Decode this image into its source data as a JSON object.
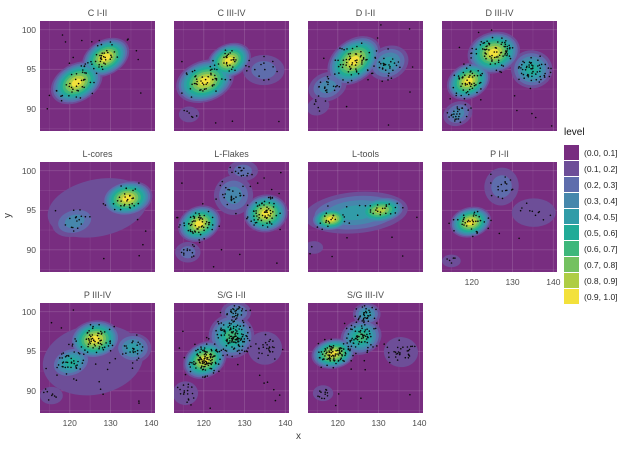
{
  "axes": {
    "x_label": "x",
    "y_label": "y",
    "x_tick_labels": [
      "120",
      "130",
      "140"
    ],
    "y_tick_labels": [
      "100",
      "95",
      "90"
    ]
  },
  "legend": {
    "title": "level",
    "entries": [
      {
        "label": "(0.0, 0.1]",
        "color": "#782d80"
      },
      {
        "label": "(0.1, 0.2]",
        "color": "#6d4e98"
      },
      {
        "label": "(0.2, 0.3]",
        "color": "#5e6dac"
      },
      {
        "label": "(0.3, 0.4]",
        "color": "#4687ac"
      },
      {
        "label": "(0.4, 0.5]",
        "color": "#319ca8"
      },
      {
        "label": "(0.5, 0.6]",
        "color": "#21ab97"
      },
      {
        "label": "(0.6, 0.7]",
        "color": "#3eb77b"
      },
      {
        "label": "(0.7, 0.8]",
        "color": "#74c160"
      },
      {
        "label": "(0.8, 0.9]",
        "color": "#aecd44"
      },
      {
        "label": "(0.9, 1.0]",
        "color": "#f3e13b"
      }
    ]
  },
  "style": {
    "panel_bg": "#782d80",
    "band_colors": [
      "#782d80",
      "#6d4e98",
      "#5e6dac",
      "#4687ac",
      "#319ca8",
      "#21ab97",
      "#3eb77b",
      "#74c160",
      "#aecd44",
      "#f3e13b"
    ],
    "grid_major": "rgba(255,255,255,0.15)",
    "grid_minor": "rgba(255,255,255,0.07)",
    "point_color": "#0a0a0a",
    "text_color": "#4d4d4d"
  },
  "chart_data": {
    "type": "scatter",
    "subtype": "faceted 2D kernel-density filled contours (10 level bins) with data points",
    "x_range": [
      112.7,
      140.9
    ],
    "y_range": [
      87.2,
      101.1
    ],
    "x_ticks": [
      120,
      130,
      140
    ],
    "y_ticks": [
      100,
      95,
      90
    ],
    "grid_x": [
      115,
      120,
      125,
      130,
      135,
      140
    ],
    "grid_y": [
      87.5,
      90,
      92.5,
      95,
      97.5,
      100
    ],
    "facets": [
      {
        "title": "C I-II",
        "row": 0,
        "col": 0,
        "seed": 1,
        "scatter_n": 12,
        "kernels": [
          {
            "x": 121.7,
            "y": 93.3,
            "rx": 6.8,
            "ry": 2.4,
            "rot": -30,
            "peak": 10,
            "n": 40
          },
          {
            "x": 128.8,
            "y": 96.5,
            "rx": 6.2,
            "ry": 2.2,
            "rot": -30,
            "peak": 10,
            "n": 35
          }
        ]
      },
      {
        "title": "C III-IV",
        "row": 0,
        "col": 1,
        "seed": 2,
        "scatter_n": 10,
        "kernels": [
          {
            "x": 120.3,
            "y": 93.5,
            "rx": 7.3,
            "ry": 2.6,
            "rot": -20,
            "peak": 10,
            "n": 45
          },
          {
            "x": 126.2,
            "y": 96.1,
            "rx": 5.6,
            "ry": 2.1,
            "rot": -25,
            "peak": 10,
            "n": 30
          },
          {
            "x": 134.7,
            "y": 94.9,
            "rx": 5.1,
            "ry": 1.9,
            "rot": 0,
            "peak": 3,
            "n": 12
          },
          {
            "x": 116.4,
            "y": 89.3,
            "rx": 2.5,
            "ry": 1.0,
            "rot": 0,
            "peak": 2,
            "n": 4
          }
        ]
      },
      {
        "title": "D I-II",
        "row": 0,
        "col": 2,
        "seed": 3,
        "scatter_n": 10,
        "kernels": [
          {
            "x": 124.0,
            "y": 96.1,
            "rx": 7.3,
            "ry": 2.6,
            "rot": -38,
            "peak": 10,
            "n": 60
          },
          {
            "x": 132.4,
            "y": 95.8,
            "rx": 5.1,
            "ry": 2.1,
            "rot": -25,
            "peak": 5,
            "n": 30
          },
          {
            "x": 117.5,
            "y": 92.8,
            "rx": 4.8,
            "ry": 1.8,
            "rot": -20,
            "peak": 4,
            "n": 20
          },
          {
            "x": 115.2,
            "y": 90.3,
            "rx": 2.8,
            "ry": 1.1,
            "rot": -20,
            "peak": 2,
            "n": 5
          }
        ]
      },
      {
        "title": "D III-IV",
        "row": 0,
        "col": 3,
        "seed": 4,
        "scatter_n": 12,
        "kernels": [
          {
            "x": 125.4,
            "y": 97.1,
            "rx": 6.5,
            "ry": 2.6,
            "rot": -15,
            "peak": 10,
            "n": 75
          },
          {
            "x": 119.2,
            "y": 93.5,
            "rx": 5.6,
            "ry": 2.2,
            "rot": -30,
            "peak": 10,
            "n": 55
          },
          {
            "x": 134.7,
            "y": 95.0,
            "rx": 5.1,
            "ry": 2.4,
            "rot": 5,
            "peak": 6,
            "n": 55
          },
          {
            "x": 116.6,
            "y": 89.4,
            "rx": 3.7,
            "ry": 1.5,
            "rot": -25,
            "peak": 4,
            "n": 25
          }
        ]
      },
      {
        "title": "L-cores",
        "row": 1,
        "col": 0,
        "seed": 5,
        "scatter_n": 8,
        "kernels": [
          {
            "x": 134.1,
            "y": 96.5,
            "rx": 6.2,
            "ry": 2.2,
            "rot": -10,
            "peak": 10,
            "n": 30
          },
          {
            "x": 121.2,
            "y": 93.6,
            "rx": 5.6,
            "ry": 1.9,
            "rot": -15,
            "peak": 4,
            "n": 16
          },
          {
            "x": 126.8,
            "y": 95.3,
            "rx": 12.4,
            "ry": 3.6,
            "rot": -12,
            "peak": 2,
            "n": 0
          }
        ]
      },
      {
        "title": "L-Flakes",
        "row": 1,
        "col": 1,
        "seed": 6,
        "scatter_n": 12,
        "kernels": [
          {
            "x": 118.9,
            "y": 93.3,
            "rx": 5.4,
            "ry": 2.2,
            "rot": -25,
            "peak": 10,
            "n": 60
          },
          {
            "x": 135.2,
            "y": 94.6,
            "rx": 5.4,
            "ry": 2.4,
            "rot": -10,
            "peak": 10,
            "n": 60
          },
          {
            "x": 127.3,
            "y": 96.9,
            "rx": 4.8,
            "ry": 2.5,
            "rot": 15,
            "peak": 4,
            "n": 25
          },
          {
            "x": 129.6,
            "y": 100.0,
            "rx": 3.7,
            "ry": 1.3,
            "rot": 0,
            "peak": 3,
            "n": 15
          },
          {
            "x": 116.1,
            "y": 89.7,
            "rx": 3.1,
            "ry": 1.3,
            "rot": 0,
            "peak": 3,
            "n": 12
          }
        ]
      },
      {
        "title": "L-tools",
        "row": 1,
        "col": 2,
        "seed": 7,
        "scatter_n": 6,
        "kernels": [
          {
            "x": 118.3,
            "y": 93.9,
            "rx": 4.8,
            "ry": 1.5,
            "rot": -5,
            "peak": 10,
            "n": 18
          },
          {
            "x": 130.4,
            "y": 95.0,
            "rx": 6.2,
            "ry": 1.7,
            "rot": -8,
            "peak": 9,
            "n": 20
          },
          {
            "x": 124.5,
            "y": 94.7,
            "rx": 12.7,
            "ry": 2.6,
            "rot": -5,
            "peak": 5,
            "n": 6
          },
          {
            "x": 114.1,
            "y": 90.3,
            "rx": 2.3,
            "ry": 0.8,
            "rot": 0,
            "peak": 2,
            "n": 2
          }
        ]
      },
      {
        "title": "P I-II",
        "row": 1,
        "col": 3,
        "seed": 8,
        "scatter_n": 6,
        "kernels": [
          {
            "x": 119.7,
            "y": 93.5,
            "rx": 5.1,
            "ry": 1.9,
            "rot": -15,
            "peak": 10,
            "n": 35
          },
          {
            "x": 127.3,
            "y": 98.0,
            "rx": 4.2,
            "ry": 2.4,
            "rot": 10,
            "peak": 3,
            "n": 16
          },
          {
            "x": 135.2,
            "y": 94.7,
            "rx": 5.4,
            "ry": 1.8,
            "rot": 0,
            "peak": 2,
            "n": 10
          },
          {
            "x": 115.0,
            "y": 88.6,
            "rx": 2.3,
            "ry": 0.8,
            "rot": 0,
            "peak": 2,
            "n": 5
          }
        ]
      },
      {
        "title": "P III-IV",
        "row": 2,
        "col": 0,
        "seed": 9,
        "scatter_n": 12,
        "kernels": [
          {
            "x": 126.2,
            "y": 96.5,
            "rx": 6.2,
            "ry": 2.4,
            "rot": -10,
            "peak": 10,
            "n": 60
          },
          {
            "x": 120.3,
            "y": 93.6,
            "rx": 5.1,
            "ry": 1.9,
            "rot": -20,
            "peak": 6,
            "n": 35
          },
          {
            "x": 135.5,
            "y": 95.4,
            "rx": 4.5,
            "ry": 1.9,
            "rot": 0,
            "peak": 5,
            "n": 25
          },
          {
            "x": 125.7,
            "y": 93.9,
            "rx": 12.4,
            "ry": 4.4,
            "rot": -10,
            "peak": 2,
            "n": 10
          },
          {
            "x": 115.5,
            "y": 89.4,
            "rx": 2.8,
            "ry": 1.1,
            "rot": 0,
            "peak": 2,
            "n": 8
          }
        ]
      },
      {
        "title": "S/G I-II",
        "row": 2,
        "col": 1,
        "seed": 10,
        "scatter_n": 15,
        "kernels": [
          {
            "x": 120.3,
            "y": 93.9,
            "rx": 5.6,
            "ry": 2.2,
            "rot": -30,
            "peak": 10,
            "n": 110
          },
          {
            "x": 126.8,
            "y": 96.9,
            "rx": 5.6,
            "ry": 2.8,
            "rot": 0,
            "peak": 7,
            "n": 130
          },
          {
            "x": 127.9,
            "y": 99.9,
            "rx": 3.7,
            "ry": 1.4,
            "rot": 0,
            "peak": 4,
            "n": 30
          },
          {
            "x": 135.0,
            "y": 95.4,
            "rx": 4.2,
            "ry": 2.1,
            "rot": 0,
            "peak": 2,
            "n": 25
          },
          {
            "x": 115.5,
            "y": 89.7,
            "rx": 3.1,
            "ry": 1.5,
            "rot": 0,
            "peak": 2,
            "n": 18
          }
        ]
      },
      {
        "title": "S/G III-IV",
        "row": 2,
        "col": 2,
        "seed": 11,
        "scatter_n": 12,
        "kernels": [
          {
            "x": 118.9,
            "y": 94.7,
            "rx": 5.4,
            "ry": 1.9,
            "rot": -10,
            "peak": 10,
            "n": 90
          },
          {
            "x": 125.7,
            "y": 96.8,
            "rx": 5.1,
            "ry": 2.2,
            "rot": -20,
            "peak": 7,
            "n": 70
          },
          {
            "x": 127.1,
            "y": 99.7,
            "rx": 3.4,
            "ry": 1.4,
            "rot": 0,
            "peak": 5,
            "n": 30
          },
          {
            "x": 135.5,
            "y": 94.9,
            "rx": 4.2,
            "ry": 1.9,
            "rot": 5,
            "peak": 2,
            "n": 30
          },
          {
            "x": 116.4,
            "y": 89.7,
            "rx": 2.5,
            "ry": 1.0,
            "rot": 0,
            "peak": 2,
            "n": 12
          }
        ]
      }
    ]
  }
}
